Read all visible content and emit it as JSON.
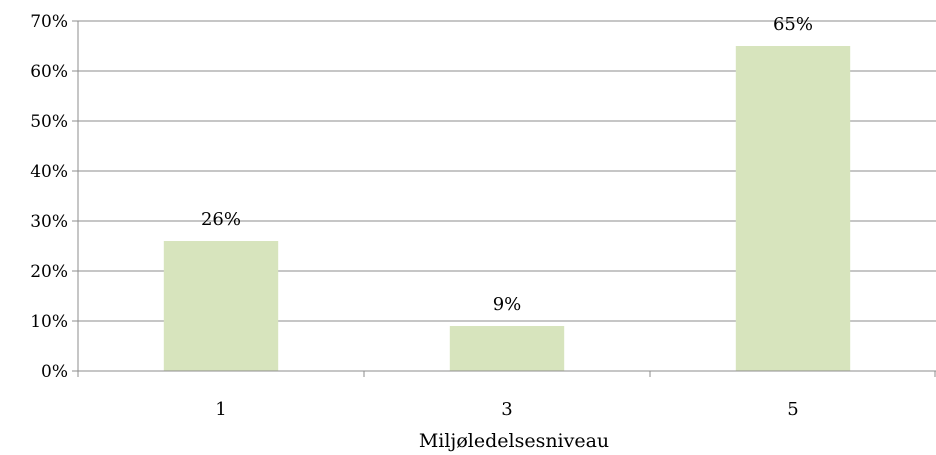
{
  "chart_data": {
    "type": "bar",
    "categories": [
      "1",
      "3",
      "5"
    ],
    "values": [
      26,
      9,
      65
    ],
    "data_labels": [
      "26%",
      "9%",
      "65%"
    ],
    "xlabel": "Miljøledelsesniveau",
    "ylabel": "",
    "ylim": [
      0,
      70
    ],
    "y_ticks": [
      0,
      10,
      20,
      30,
      40,
      50,
      60,
      70
    ],
    "y_tick_labels": [
      "0%",
      "10%",
      "20%",
      "30%",
      "40%",
      "50%",
      "60%",
      "70%"
    ],
    "grid": true,
    "legend": "none",
    "bar_color": "#d7e4bd"
  }
}
